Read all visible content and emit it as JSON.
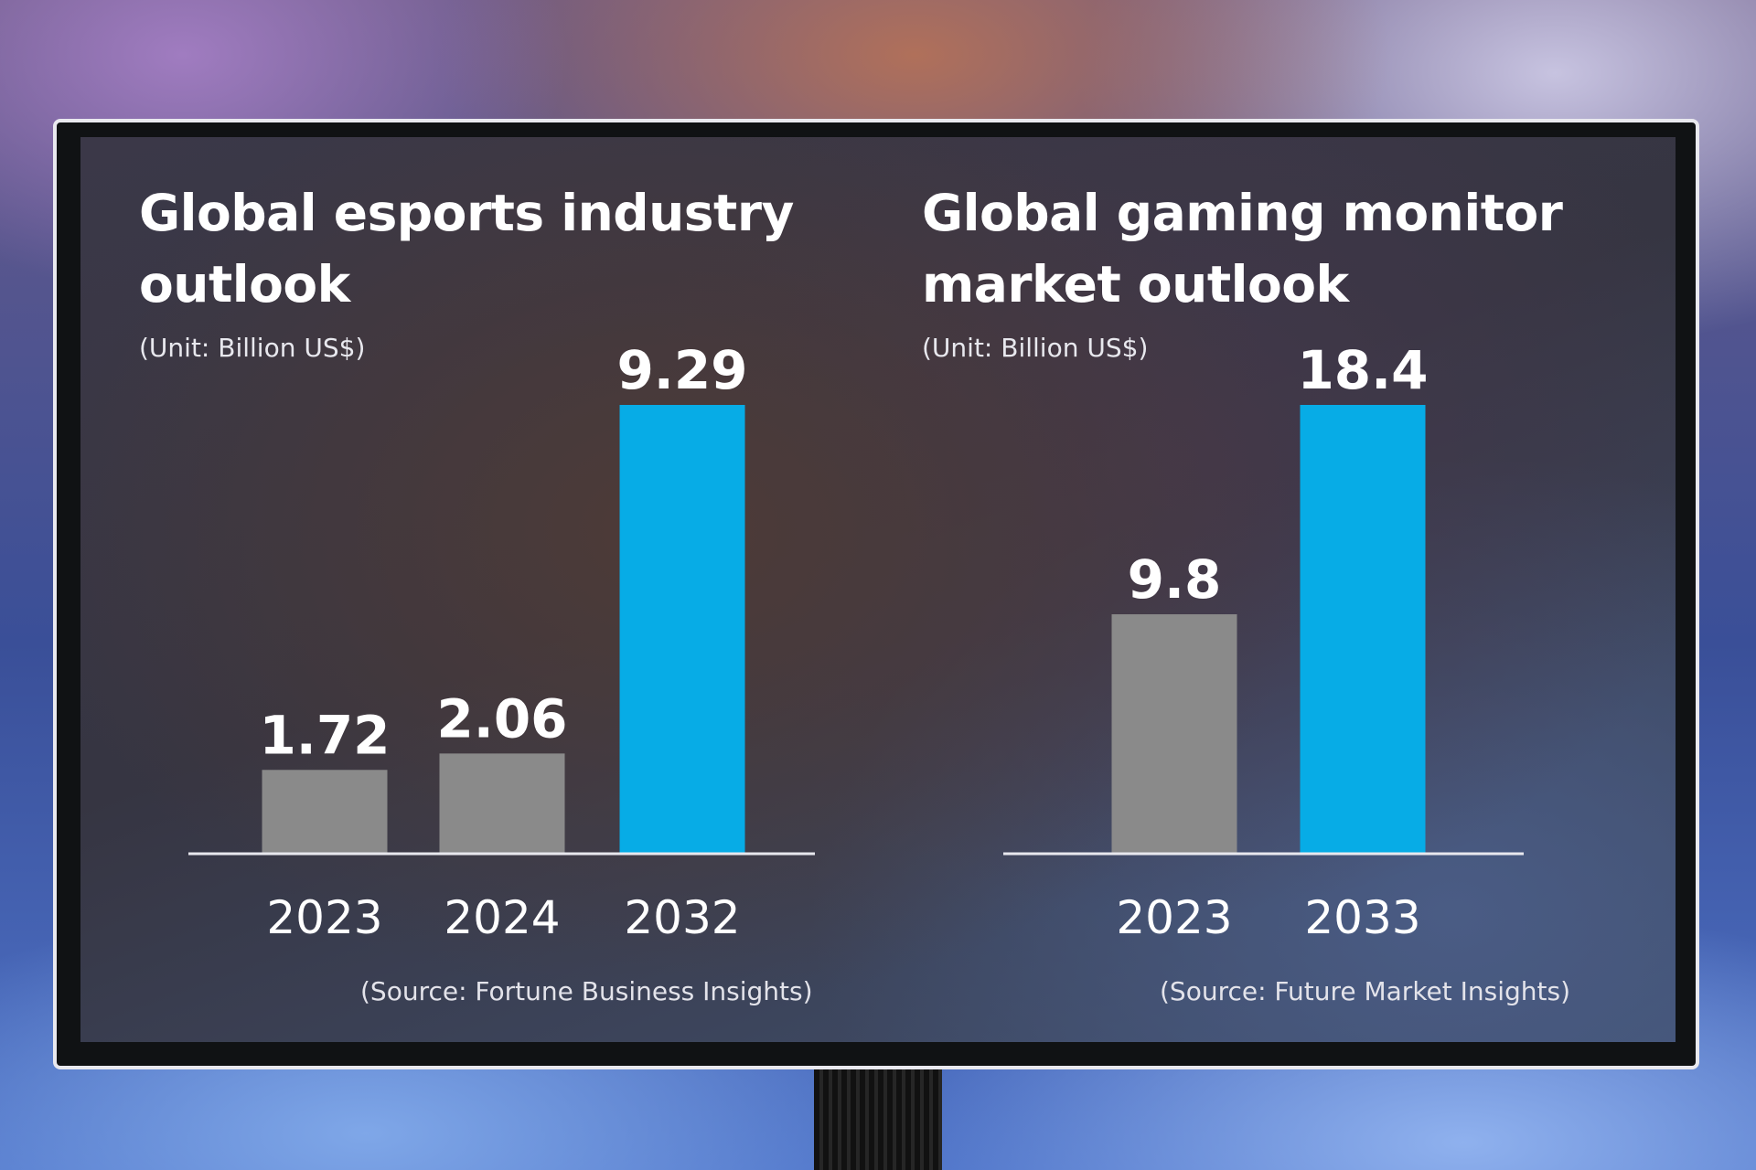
{
  "colors": {
    "highlight": "#07ace6",
    "neutral": "#8a8a8a",
    "baseline": "#e8e8ee"
  },
  "chart_data": [
    {
      "type": "bar",
      "title": "Global esports industry outlook",
      "title_lines": [
        "Global esports industry",
        "outlook"
      ],
      "unit": "(Unit: Billion US$)",
      "categories": [
        "2023",
        "2024",
        "2032"
      ],
      "values": [
        1.72,
        2.06,
        9.29
      ],
      "value_labels": [
        "1.72",
        "2.06",
        "9.29"
      ],
      "highlight": [
        false,
        false,
        true
      ],
      "ylim": [
        0,
        9.29
      ],
      "source": "(Source: Fortune Business Insights)"
    },
    {
      "type": "bar",
      "title": "Global gaming monitor market outlook",
      "title_lines": [
        "Global gaming monitor",
        "market outlook"
      ],
      "unit": "(Unit: Billion US$)",
      "categories": [
        "2023",
        "2033"
      ],
      "values": [
        9.8,
        18.4
      ],
      "value_labels": [
        "9.8",
        "18.4"
      ],
      "highlight": [
        false,
        true
      ],
      "ylim": [
        0,
        18.4
      ],
      "source": "(Source: Future Market Insights)"
    }
  ]
}
